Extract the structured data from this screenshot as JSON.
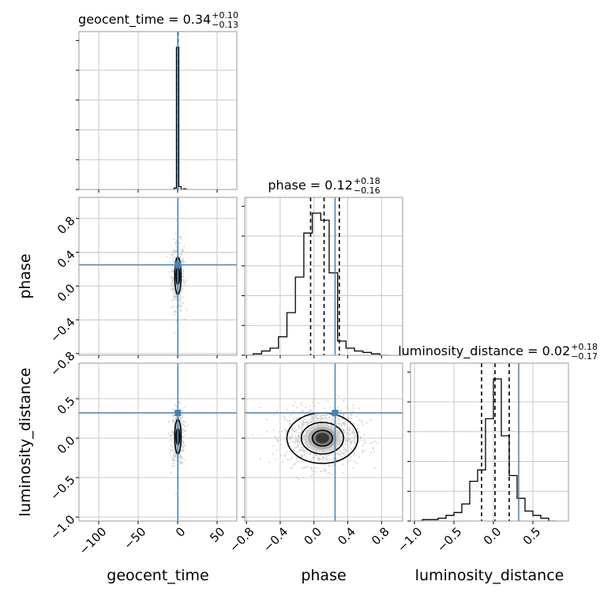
{
  "chart_data": {
    "type": "corner",
    "parameters": [
      "geocent_time",
      "phase",
      "luminosity_distance"
    ],
    "axis_labels": {
      "geocent_time": "geocent_time",
      "phase": "phase",
      "luminosity_distance": "luminosity_distance"
    },
    "ranges": {
      "geocent_time": [
        -125,
        75
      ],
      "phase": [
        -0.82,
        1.05
      ],
      "luminosity_distance": [
        -1.05,
        0.95
      ]
    },
    "ticks": {
      "geocent_time": [
        -100,
        -50,
        0,
        50
      ],
      "phase": [
        -0.8,
        -0.4,
        0.0,
        0.4,
        0.8
      ],
      "luminosity_distance": [
        -1.0,
        -0.5,
        0.0,
        0.5
      ]
    },
    "tick_labels": {
      "geocent_time": [
        "−100",
        "−50",
        "0",
        "50"
      ],
      "phase": [
        "−0.8",
        "−0.4",
        "0.0",
        "0.4",
        "0.8"
      ],
      "luminosity_distance": [
        "−1.0",
        "−0.5",
        "0.0",
        "0.5"
      ]
    },
    "titles": [
      {
        "param": "geocent_time",
        "prefix": "geocent_time = 0.34",
        "upper": "+0.10",
        "lower": "−0.13"
      },
      {
        "param": "phase",
        "prefix": "phase = 0.12",
        "upper": "+0.18",
        "lower": "−0.16"
      },
      {
        "param": "luminosity_distance",
        "prefix": "luminosity_distance = 0.02",
        "upper": "+0.18",
        "lower": "−0.17"
      }
    ],
    "truths": {
      "geocent_time": 0.3,
      "phase": 0.25,
      "luminosity_distance": 0.32
    },
    "quantiles": {
      "geocent_time": [
        0.21,
        0.34,
        0.44
      ],
      "phase": [
        -0.04,
        0.12,
        0.3
      ],
      "luminosity_distance": [
        -0.15,
        0.02,
        0.2
      ]
    },
    "histograms": {
      "geocent_time": {
        "bins": [
          -1.5,
          -0.9,
          -0.3,
          0.3,
          0.9,
          1.5
        ],
        "bin_edges": [
          -4.5,
          -1.5,
          1.5,
          4.5,
          7.5,
          10.5,
          13.5
        ],
        "counts": [
          0.01,
          1.0,
          0.02,
          0.0,
          0.005,
          0.0
        ]
      },
      "phase": {
        "bin_edges": [
          -0.82,
          -0.72,
          -0.62,
          -0.52,
          -0.42,
          -0.32,
          -0.22,
          -0.12,
          -0.02,
          0.08,
          0.18,
          0.28,
          0.38,
          0.48,
          0.58,
          0.68,
          0.78,
          0.88
        ],
        "counts": [
          0.0,
          0.01,
          0.03,
          0.05,
          0.13,
          0.3,
          0.55,
          0.86,
          1.0,
          0.95,
          0.58,
          0.1,
          0.05,
          0.03,
          0.02,
          0.01,
          0.0
        ]
      },
      "luminosity_distance": {
        "bin_edges": [
          -1.0,
          -0.9,
          -0.8,
          -0.7,
          -0.6,
          -0.5,
          -0.4,
          -0.3,
          -0.2,
          -0.1,
          0.0,
          0.1,
          0.2,
          0.3,
          0.4,
          0.5,
          0.6,
          0.7,
          0.8
        ],
        "counts": [
          0.0,
          0.01,
          0.01,
          0.02,
          0.04,
          0.06,
          0.12,
          0.28,
          0.36,
          0.72,
          1.0,
          0.6,
          0.32,
          0.16,
          0.07,
          0.04,
          0.02,
          0.0
        ]
      }
    },
    "scatter_samples": {
      "geocent_time_vs_phase": {
        "x_center": 0.3,
        "x_sd": 4.0,
        "y_center": 0.12,
        "y_sd": 0.2,
        "n": 400
      },
      "geocent_time_vs_luminosity_distance": {
        "x_center": 0.3,
        "x_sd": 4.0,
        "y_center": 0.02,
        "y_sd": 0.18,
        "n": 400
      },
      "phase_vs_luminosity_distance": {
        "x_center": 0.1,
        "x_sd": 0.22,
        "y_center": 0.01,
        "y_sd": 0.18,
        "n": 1100
      }
    },
    "contours": {
      "geocent_time_vs_phase": [
        {
          "cx": 0.3,
          "cy": 0.12,
          "rx": 2.2,
          "ry": 0.1
        },
        {
          "cx": 0.3,
          "cy": 0.12,
          "rx": 4.0,
          "ry": 0.22
        }
      ],
      "geocent_time_vs_luminosity_distance": [
        {
          "cx": 0.3,
          "cy": 0.02,
          "rx": 2.2,
          "ry": 0.1
        },
        {
          "cx": 0.3,
          "cy": 0.02,
          "rx": 4.0,
          "ry": 0.22
        }
      ],
      "phase_vs_luminosity_distance": [
        {
          "cx": 0.1,
          "cy": 0.0,
          "rx": 0.12,
          "ry": 0.1
        },
        {
          "cx": 0.1,
          "cy": 0.0,
          "rx": 0.25,
          "ry": 0.2
        },
        {
          "cx": 0.1,
          "cy": 0.0,
          "rx": 0.42,
          "ry": 0.32
        }
      ]
    },
    "grid": true,
    "colors": {
      "truth": "#4682b4",
      "hist": "#000000",
      "scatter": "#c0c0c0",
      "grid": "#c8c8c8",
      "frame": "#9a9a9a"
    }
  }
}
